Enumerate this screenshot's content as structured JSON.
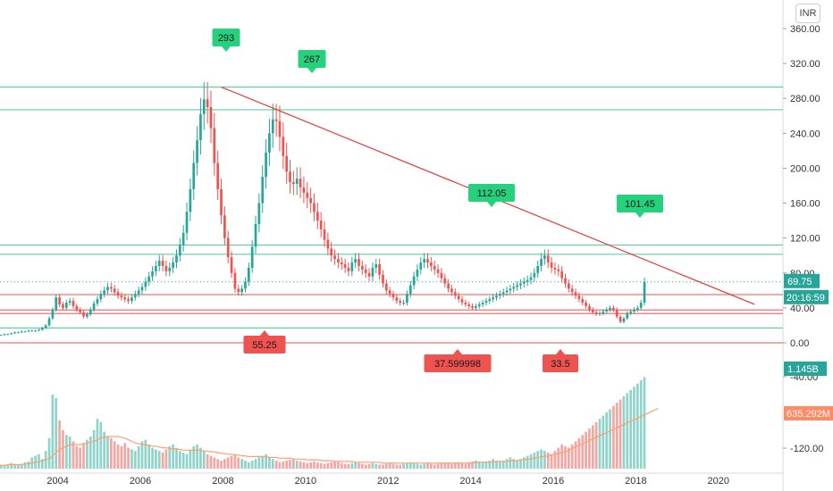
{
  "currency": "INR",
  "chart_data": {
    "type": "candlestick",
    "price_axis": {
      "ticks": [
        "360.00",
        "320.00",
        "280.00",
        "240.00",
        "200.00",
        "160.00",
        "120.00",
        "80.00",
        "40.00",
        "0.00"
      ],
      "ylim": [
        -10,
        375
      ]
    },
    "volume_axis": {
      "ticks": [
        "-40.00",
        "-120.00"
      ]
    },
    "x_ticks": [
      "2004",
      "2006",
      "2008",
      "2010",
      "2012",
      "2014",
      "2016",
      "2018",
      "2020"
    ],
    "xlim": [
      2002.6,
      2021.0
    ],
    "ohlc_monthly": {
      "start": "2002-07",
      "closes": [
        9,
        9,
        10,
        10,
        11,
        12,
        12,
        13,
        13,
        14,
        14,
        14,
        15,
        17,
        20,
        28,
        38,
        52,
        44,
        40,
        46,
        48,
        42,
        38,
        35,
        30,
        33,
        38,
        45,
        50,
        56,
        60,
        64,
        62,
        58,
        54,
        52,
        50,
        48,
        52,
        56,
        60,
        64,
        70,
        76,
        82,
        88,
        94,
        88,
        82,
        86,
        92,
        100,
        112,
        126,
        150,
        176,
        206,
        232,
        262,
        279,
        270,
        246,
        206,
        176,
        146,
        120,
        98,
        80,
        62,
        58,
        62,
        70,
        86,
        110,
        136,
        160,
        190,
        218,
        240,
        256,
        254,
        236,
        214,
        196,
        184,
        182,
        188,
        178,
        172,
        166,
        160,
        150,
        140,
        130,
        118,
        108,
        100,
        96,
        92,
        90,
        86,
        82,
        92,
        96,
        88,
        84,
        80,
        76,
        86,
        90,
        78,
        68,
        60,
        56,
        52,
        48,
        46,
        46,
        56,
        66,
        76,
        84,
        92,
        96,
        92,
        88,
        84,
        80,
        74,
        68,
        62,
        58,
        54,
        50,
        46,
        44,
        42,
        40,
        42,
        44,
        46,
        48,
        50,
        52,
        54,
        56,
        58,
        60,
        62,
        64,
        66,
        68,
        70,
        72,
        75,
        80,
        88,
        96,
        100,
        92,
        86,
        84,
        82,
        74,
        68,
        62,
        58,
        54,
        50,
        46,
        42,
        38,
        35,
        33,
        34,
        36,
        38,
        40,
        38,
        30,
        24,
        28,
        34,
        36,
        38,
        40,
        46,
        69.75
      ],
      "volumes": [
        4,
        5,
        5,
        6,
        7,
        6,
        5,
        6,
        8,
        9,
        14,
        16,
        18,
        12,
        22,
        38,
        92,
        88,
        60,
        48,
        42,
        40,
        34,
        28,
        26,
        32,
        36,
        40,
        48,
        62,
        58,
        46,
        40,
        38,
        34,
        30,
        28,
        32,
        26,
        24,
        22,
        28,
        34,
        36,
        30,
        26,
        24,
        22,
        20,
        24,
        28,
        30,
        26,
        22,
        20,
        18,
        24,
        28,
        30,
        26,
        22,
        18,
        16,
        14,
        12,
        10,
        12,
        14,
        16,
        18,
        14,
        12,
        10,
        8,
        10,
        12,
        14,
        16,
        18,
        14,
        12,
        10,
        8,
        9,
        10,
        11,
        12,
        10,
        9,
        8,
        7,
        8,
        9,
        8,
        7,
        6,
        7,
        8,
        9,
        8,
        7,
        6,
        6,
        7,
        8,
        7,
        6,
        5,
        6,
        7,
        6,
        5,
        5,
        6,
        7,
        6,
        5,
        5,
        6,
        7,
        8,
        7,
        6,
        5,
        6,
        7,
        6,
        5,
        6,
        7,
        8,
        7,
        6,
        7,
        8,
        7,
        6,
        8,
        9,
        10,
        9,
        8,
        9,
        10,
        12,
        10,
        9,
        10,
        12,
        14,
        12,
        10,
        12,
        14,
        16,
        18,
        20,
        22,
        24,
        22,
        20,
        18,
        22,
        26,
        30,
        28,
        26,
        30,
        34,
        38,
        42,
        46,
        50,
        54,
        58,
        62,
        66,
        70,
        74,
        78,
        82,
        86,
        90,
        94,
        98,
        102,
        106,
        110,
        114,
        118,
        122,
        126,
        130
      ],
      "volume_ma": [
        4,
        4,
        4,
        5,
        5,
        5,
        5,
        5,
        6,
        6,
        7,
        8,
        9,
        10,
        11,
        12,
        16,
        20,
        24,
        26,
        28,
        30,
        30,
        30,
        30,
        31,
        32,
        33,
        34,
        36,
        38,
        39,
        40,
        40,
        40,
        40,
        39,
        38,
        36,
        34,
        32,
        31,
        30,
        30,
        29,
        28,
        28,
        27,
        26,
        26,
        25,
        25,
        24,
        24,
        23,
        23,
        23,
        23,
        23,
        23,
        22,
        22,
        21,
        21,
        20,
        19,
        19,
        18,
        18,
        17,
        17,
        16,
        16,
        15,
        15,
        15,
        15,
        15,
        15,
        14,
        14,
        14,
        13,
        13,
        13,
        13,
        12,
        12,
        12,
        12,
        11,
        11,
        11,
        11,
        10,
        10,
        10,
        10,
        9,
        9,
        9,
        9,
        9,
        9,
        8,
        8,
        8,
        8,
        8,
        8,
        8,
        8,
        7,
        7,
        7,
        7,
        7,
        7,
        7,
        7,
        7,
        7,
        7,
        7,
        7,
        7,
        7,
        7,
        7,
        7,
        7,
        7,
        7,
        7,
        7,
        7,
        7,
        7,
        7,
        8,
        8,
        8,
        8,
        8,
        8,
        9,
        9,
        9,
        9,
        10,
        10,
        10,
        11,
        11,
        12,
        12,
        13,
        14,
        15,
        15,
        16,
        17,
        18,
        19,
        20,
        21,
        23,
        25,
        27,
        29,
        31,
        33,
        35,
        37,
        39,
        41,
        43,
        45,
        47,
        49,
        51,
        53,
        55,
        57,
        59,
        61,
        63,
        65,
        67,
        69,
        71,
        73,
        75
      ]
    },
    "trendline": {
      "from": [
        "2007-12",
        293
      ],
      "to": [
        "2020-11",
        44
      ]
    },
    "horizontal_levels": {
      "green": [
        293,
        267,
        112.05,
        101.45,
        17
      ],
      "red": [
        55.25,
        37.599998,
        33.5,
        0
      ]
    },
    "flags_up": [
      "293",
      "267",
      "112.05",
      "101.45"
    ],
    "flags_down": [
      "55.25",
      "37.599998",
      "33.5"
    ],
    "last_price": "69.75",
    "countdown": "20:16:59",
    "volume_last": "1.145B",
    "volume_ma_last": "635.292M",
    "colors": {
      "up": "#26a69a",
      "down": "#ef5350",
      "vol_up": "#8fd3ca",
      "vol_down": "#f4a6a3",
      "ma": "#ff9e6e",
      "trend": "#e53935",
      "green_line": "#5ad3a0",
      "red_line": "#f07373",
      "flag_green": "#26d07c",
      "flag_red": "#ef5350"
    }
  }
}
